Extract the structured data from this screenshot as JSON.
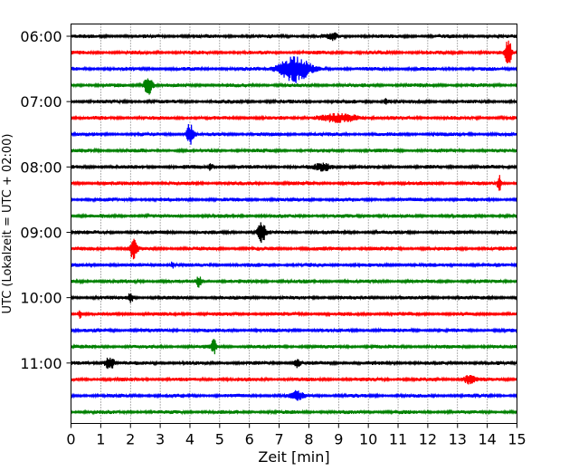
{
  "chart_data": {
    "type": "line",
    "title": "",
    "xlabel": "Zeit  [min]",
    "ylabel": "UTC (Lokalzeit = UTC + 02:00)",
    "xlim": [
      0,
      15
    ],
    "x_ticks": [
      "0",
      "1",
      "2",
      "3",
      "4",
      "5",
      "6",
      "7",
      "8",
      "9",
      "10",
      "11",
      "12",
      "13",
      "14",
      "15"
    ],
    "y_tick_labels": [
      "06:00",
      "07:00",
      "08:00",
      "09:00",
      "10:00",
      "11:00"
    ],
    "grid": "vertical dotted",
    "legend": "none",
    "trace_colors": [
      "#000000",
      "#ff0000",
      "#0000ff",
      "#008000"
    ],
    "series": [
      {
        "start": "06:00",
        "color": "black",
        "events": [
          {
            "t": 8.8,
            "amp": 0.6,
            "w": 0.15
          }
        ]
      },
      {
        "start": "06:15",
        "color": "red",
        "events": [
          {
            "t": 14.7,
            "amp": 3.0,
            "w": 0.1
          }
        ]
      },
      {
        "start": "06:30",
        "color": "blue",
        "events": [
          {
            "t": 7.5,
            "amp": 2.4,
            "w": 0.5
          }
        ]
      },
      {
        "start": "06:45",
        "color": "green",
        "events": [
          {
            "t": 2.6,
            "amp": 2.0,
            "w": 0.15
          }
        ]
      },
      {
        "start": "07:00",
        "color": "black",
        "events": [
          {
            "t": 10.6,
            "amp": 0.5,
            "w": 0.1
          }
        ]
      },
      {
        "start": "07:15",
        "color": "red",
        "events": [
          {
            "t": 9.0,
            "amp": 0.6,
            "w": 0.8
          }
        ]
      },
      {
        "start": "07:30",
        "color": "blue",
        "events": [
          {
            "t": 4.0,
            "amp": 2.0,
            "w": 0.12
          }
        ]
      },
      {
        "start": "07:45",
        "color": "green",
        "events": []
      },
      {
        "start": "08:00",
        "color": "black",
        "events": [
          {
            "t": 4.7,
            "amp": 1.0,
            "w": 0.05
          },
          {
            "t": 8.5,
            "amp": 0.6,
            "w": 0.3
          }
        ]
      },
      {
        "start": "08:15",
        "color": "red",
        "events": [
          {
            "t": 14.4,
            "amp": 1.6,
            "w": 0.06
          }
        ]
      },
      {
        "start": "08:30",
        "color": "blue",
        "events": []
      },
      {
        "start": "08:45",
        "color": "green",
        "events": []
      },
      {
        "start": "09:00",
        "color": "black",
        "events": [
          {
            "t": 6.4,
            "amp": 2.4,
            "w": 0.12
          }
        ]
      },
      {
        "start": "09:15",
        "color": "red",
        "events": [
          {
            "t": 2.1,
            "amp": 1.8,
            "w": 0.12
          }
        ]
      },
      {
        "start": "09:30",
        "color": "blue",
        "events": [
          {
            "t": 3.4,
            "amp": 0.7,
            "w": 0.05
          }
        ]
      },
      {
        "start": "09:45",
        "color": "green",
        "events": [
          {
            "t": 4.3,
            "amp": 1.0,
            "w": 0.08
          }
        ]
      },
      {
        "start": "10:00",
        "color": "black",
        "events": [
          {
            "t": 2.0,
            "amp": 0.8,
            "w": 0.1
          }
        ]
      },
      {
        "start": "10:15",
        "color": "red",
        "events": [
          {
            "t": 0.3,
            "amp": 0.8,
            "w": 0.05
          }
        ]
      },
      {
        "start": "10:30",
        "color": "blue",
        "events": []
      },
      {
        "start": "10:45",
        "color": "green",
        "events": [
          {
            "t": 4.8,
            "amp": 1.3,
            "w": 0.08
          }
        ]
      },
      {
        "start": "11:00",
        "color": "black",
        "events": [
          {
            "t": 1.3,
            "amp": 1.3,
            "w": 0.15
          },
          {
            "t": 7.6,
            "amp": 0.8,
            "w": 0.1
          }
        ]
      },
      {
        "start": "11:15",
        "color": "red",
        "events": [
          {
            "t": 13.4,
            "amp": 0.8,
            "w": 0.2
          }
        ]
      },
      {
        "start": "11:30",
        "color": "blue",
        "events": [
          {
            "t": 7.6,
            "amp": 0.7,
            "w": 0.2
          }
        ]
      },
      {
        "start": "11:45",
        "color": "green",
        "events": []
      }
    ]
  }
}
